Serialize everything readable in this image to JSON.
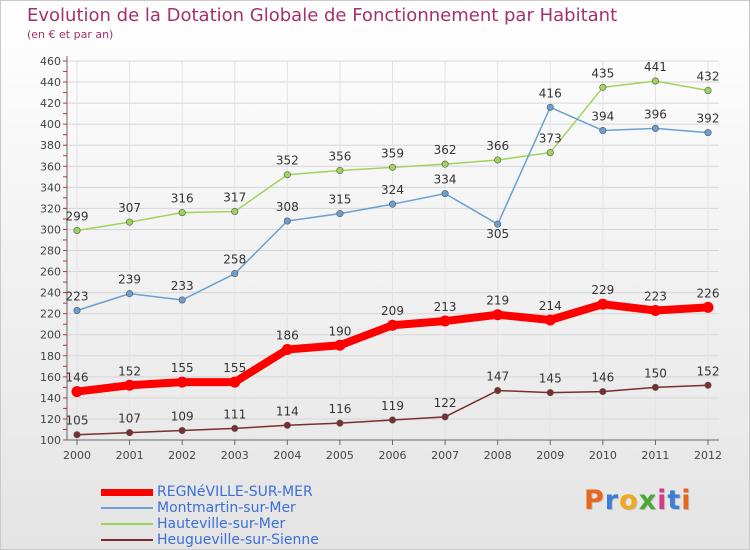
{
  "title": "Evolution de la Dotation Globale de Fonctionnement par Habitant",
  "subtitle": "(en € et par an)",
  "brand": {
    "text": "Proxiti",
    "colors": [
      "#e8661c",
      "#3a7fd5",
      "#f0a81e",
      "#4aa83a",
      "#d83a8a",
      "#3a7fd5",
      "#e8661c"
    ]
  },
  "chart_data": {
    "type": "line",
    "x": [
      "2000",
      "2001",
      "2002",
      "2003",
      "2004",
      "2005",
      "2006",
      "2007",
      "2008",
      "2009",
      "2010",
      "2011",
      "2012"
    ],
    "ylim": [
      100,
      460
    ],
    "yticks": [
      100,
      120,
      140,
      160,
      180,
      200,
      220,
      240,
      260,
      280,
      300,
      320,
      340,
      360,
      380,
      400,
      420,
      440,
      460
    ],
    "grid": true,
    "legend_position": "bottom-left",
    "series": [
      {
        "name": "REGNéVILLE-SUR-MER",
        "color": "#ff0000",
        "values": [
          146,
          152,
          155,
          155,
          186,
          190,
          209,
          213,
          219,
          214,
          229,
          223,
          226
        ]
      },
      {
        "name": "Montmartin-sur-Mer",
        "color": "#6b9fd1",
        "values": [
          223,
          239,
          233,
          258,
          308,
          315,
          324,
          334,
          305,
          416,
          394,
          396,
          392
        ]
      },
      {
        "name": "Hauteville-sur-Mer",
        "color": "#9fd45c",
        "values": [
          299,
          307,
          316,
          317,
          352,
          356,
          359,
          362,
          366,
          373,
          435,
          441,
          432
        ]
      },
      {
        "name": "Heugueville-sur-Sienne",
        "color": "#7a2e2e",
        "values": [
          105,
          107,
          109,
          111,
          114,
          116,
          119,
          122,
          147,
          145,
          146,
          150,
          152
        ]
      }
    ]
  }
}
